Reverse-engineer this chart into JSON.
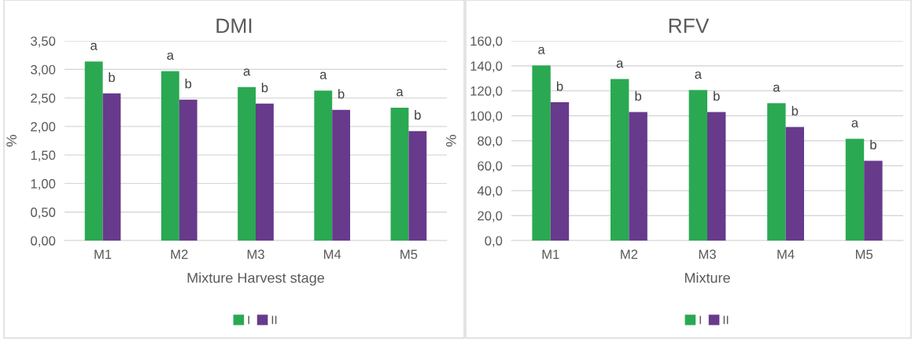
{
  "chart_data": [
    {
      "type": "bar",
      "title": "DMI",
      "xlabel": "Mixture Harvest stage",
      "ylabel": "%",
      "categories": [
        "M1",
        "M2",
        "M3",
        "M4",
        "M5"
      ],
      "series": [
        {
          "name": "I",
          "color": "#2aa952",
          "values": [
            3.14,
            2.97,
            2.69,
            2.63,
            2.33
          ],
          "value_labels": [
            "a",
            "a",
            "a",
            "a",
            "a"
          ]
        },
        {
          "name": "II",
          "color": "#673a8c",
          "values": [
            2.58,
            2.47,
            2.4,
            2.29,
            1.92
          ],
          "value_labels": [
            "b",
            "b",
            "b",
            "b",
            "b"
          ]
        }
      ],
      "ylim": [
        0,
        3.5
      ],
      "yticks": [
        {
          "value": 0,
          "label": "0,00"
        },
        {
          "value": 0.5,
          "label": "0,50"
        },
        {
          "value": 1,
          "label": "1,00"
        },
        {
          "value": 1.5,
          "label": "1,50"
        },
        {
          "value": 2,
          "label": "2,00"
        },
        {
          "value": 2.5,
          "label": "2,50"
        },
        {
          "value": 3,
          "label": "3,00"
        },
        {
          "value": 3.5,
          "label": "3,50"
        }
      ],
      "grid": "y",
      "legend": "bottom"
    },
    {
      "type": "bar",
      "title": "RFV",
      "xlabel": "Mixture",
      "ylabel": "%",
      "categories": [
        "M1",
        "M2",
        "M3",
        "M4",
        "M5"
      ],
      "series": [
        {
          "name": "I",
          "color": "#2aa952",
          "values": [
            140.3,
            129.4,
            120.6,
            110.1,
            81.6
          ],
          "value_labels": [
            "a",
            "a",
            "a",
            "a",
            "a"
          ]
        },
        {
          "name": "II",
          "color": "#673a8c",
          "values": [
            110.8,
            103.0,
            103.0,
            91.1,
            64.0
          ],
          "value_labels": [
            "b",
            "b",
            "b",
            "b",
            "b"
          ]
        }
      ],
      "ylim": [
        0,
        160
      ],
      "yticks": [
        {
          "value": 0,
          "label": "0,0"
        },
        {
          "value": 20,
          "label": "20,0"
        },
        {
          "value": 40,
          "label": "40,0"
        },
        {
          "value": 60,
          "label": "60,0"
        },
        {
          "value": 80,
          "label": "80,0"
        },
        {
          "value": 100,
          "label": "100,0"
        },
        {
          "value": 120,
          "label": "120,0"
        },
        {
          "value": 140,
          "label": "140,0"
        },
        {
          "value": 160,
          "label": "160,0"
        }
      ],
      "grid": "y",
      "legend": "bottom"
    }
  ]
}
